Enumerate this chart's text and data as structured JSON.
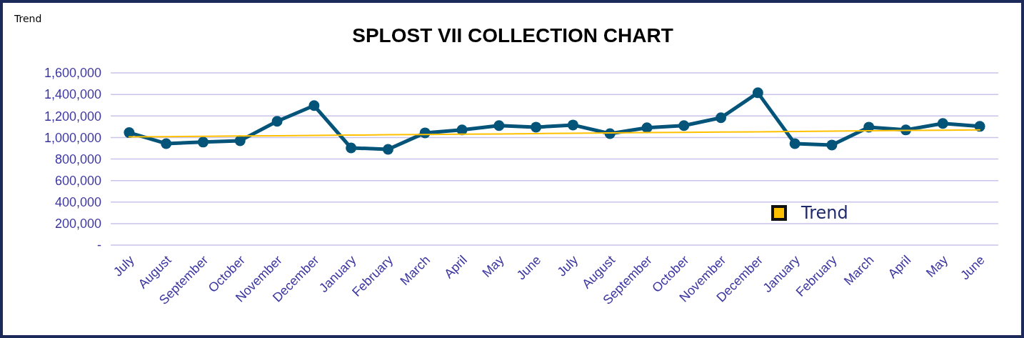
{
  "chart_data": {
    "type": "line",
    "title": "SPLOST VII COLLECTION CHART",
    "annotations": [
      "Trend"
    ],
    "categories": [
      "July",
      "August",
      "September",
      "October",
      "November",
      "December",
      "January",
      "February",
      "March",
      "April",
      "May",
      "June",
      "July",
      "August",
      "September",
      "October",
      "November",
      "December",
      "January",
      "February",
      "March",
      "April",
      "May",
      "June"
    ],
    "series": [
      {
        "color": "#04547a",
        "marker": "circle",
        "values": [
          1045000,
          943000,
          957000,
          970000,
          1150000,
          1296000,
          903000,
          890000,
          1043000,
          1070000,
          1110000,
          1096000,
          1116000,
          1036000,
          1090000,
          1110000,
          1183000,
          1415000,
          943000,
          930000,
          1096000,
          1070000,
          1130000,
          1103000
        ]
      },
      {
        "name": "Trend",
        "color": "#ffc000",
        "marker": "none",
        "values": [
          1005000,
          1008000,
          1011000,
          1014000,
          1016000,
          1019000,
          1022000,
          1025000,
          1028000,
          1031000,
          1033000,
          1036000,
          1039000,
          1042000,
          1045000,
          1048000,
          1050000,
          1053000,
          1056000,
          1059000,
          1062000,
          1065000,
          1067000,
          1070000
        ]
      }
    ],
    "ylim": [
      0,
      1600000
    ],
    "yticks": [
      {
        "value": 0,
        "label": "-"
      },
      {
        "value": 200000,
        "label": "200,000"
      },
      {
        "value": 400000,
        "label": "400,000"
      },
      {
        "value": 600000,
        "label": "600,000"
      },
      {
        "value": 800000,
        "label": "800,000"
      },
      {
        "value": 1000000,
        "label": "1,000,000"
      },
      {
        "value": 1200000,
        "label": "1,200,000"
      },
      {
        "value": 1400000,
        "label": "1,400,000"
      },
      {
        "value": 1600000,
        "label": "1,600,000"
      }
    ],
    "grid": "y",
    "legend": "bottom right",
    "line_style": "solid"
  }
}
